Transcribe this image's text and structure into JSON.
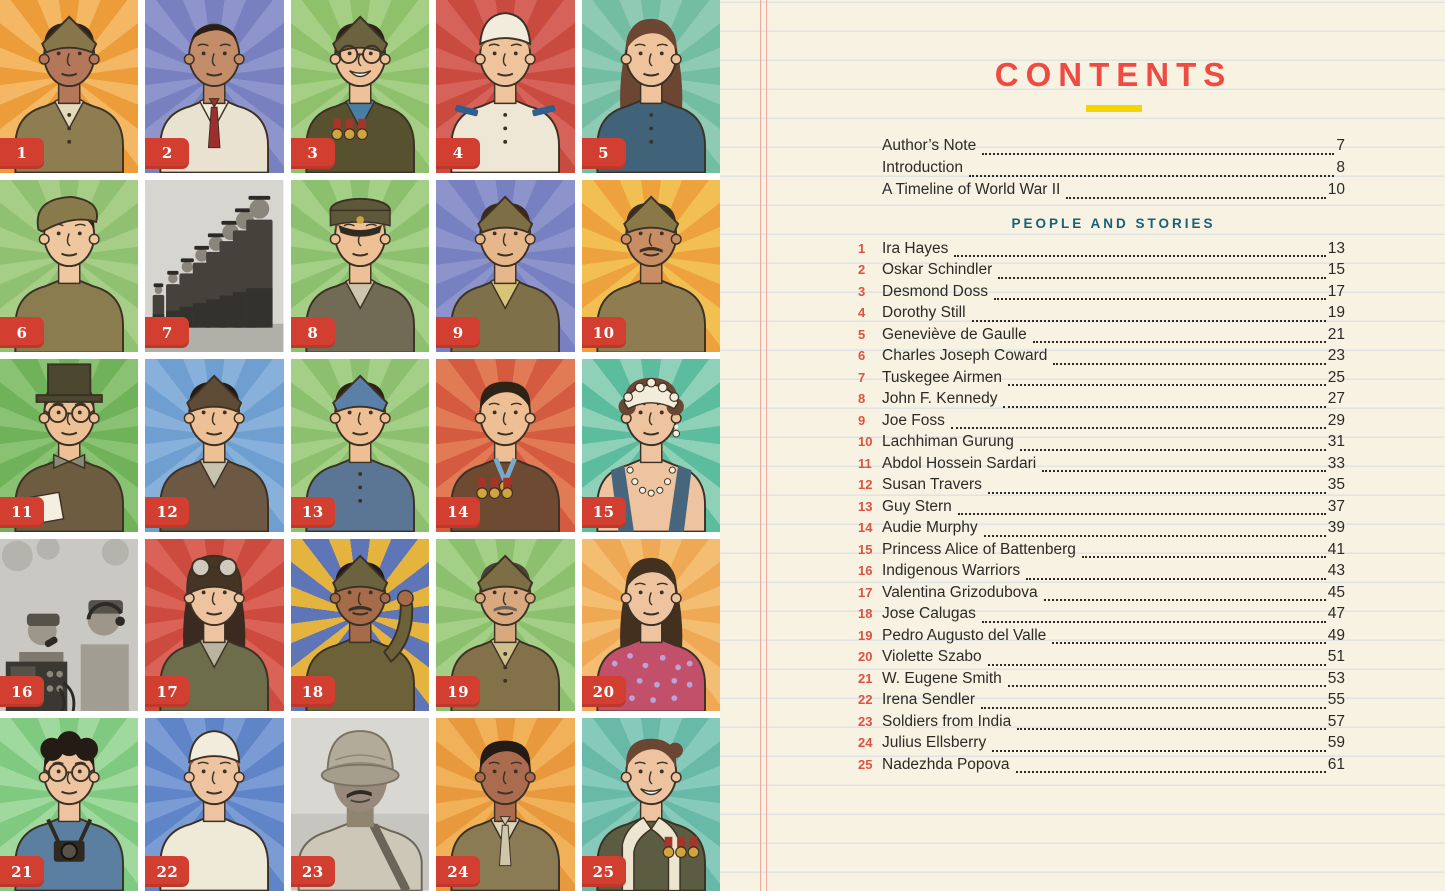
{
  "page": {
    "bg_color": "#f8f2e2",
    "rule_color": "#dfe3e1",
    "margin_line_color": "#eeab9e"
  },
  "contents": {
    "title": "CONTENTS",
    "title_color": "#ef4b41",
    "underline_color": "#f2d600",
    "section_heading": "PEOPLE AND STORIES",
    "section_color": "#15607a",
    "number_color": "#dd5240",
    "text_color": "#2b2a26",
    "front_matter": [
      {
        "label": "Author’s Note",
        "page": "7"
      },
      {
        "label": "Introduction",
        "page": "8"
      },
      {
        "label": "A Timeline of World War II",
        "page": "10"
      }
    ],
    "entries": [
      {
        "n": "1",
        "name": "Ira Hayes",
        "page": "13"
      },
      {
        "n": "2",
        "name": "Oskar Schindler",
        "page": "15"
      },
      {
        "n": "3",
        "name": "Desmond Doss",
        "page": "17"
      },
      {
        "n": "4",
        "name": "Dorothy Still",
        "page": "19"
      },
      {
        "n": "5",
        "name": "Geneviève de Gaulle",
        "page": "21"
      },
      {
        "n": "6",
        "name": "Charles Joseph Coward",
        "page": "23"
      },
      {
        "n": "7",
        "name": "Tuskegee Airmen",
        "page": "25"
      },
      {
        "n": "8",
        "name": "John F. Kennedy",
        "page": "27"
      },
      {
        "n": "9",
        "name": "Joe Foss",
        "page": "29"
      },
      {
        "n": "10",
        "name": "Lachhiman Gurung",
        "page": "31"
      },
      {
        "n": "11",
        "name": "Abdol Hossein Sardari",
        "page": "33"
      },
      {
        "n": "12",
        "name": "Susan Travers",
        "page": "35"
      },
      {
        "n": "13",
        "name": "Guy Stern",
        "page": "37"
      },
      {
        "n": "14",
        "name": "Audie Murphy",
        "page": "39"
      },
      {
        "n": "15",
        "name": "Princess Alice of Battenberg",
        "page": "41"
      },
      {
        "n": "16",
        "name": "Indigenous Warriors",
        "page": "43"
      },
      {
        "n": "17",
        "name": "Valentina Grizodubova",
        "page": "45"
      },
      {
        "n": "18",
        "name": "Jose Calugas",
        "page": "47"
      },
      {
        "n": "19",
        "name": "Pedro Augusto del Valle",
        "page": "49"
      },
      {
        "n": "20",
        "name": "Violette Szabo",
        "page": "51"
      },
      {
        "n": "21",
        "name": "W. Eugene Smith",
        "page": "53"
      },
      {
        "n": "22",
        "name": "Irena Sendler",
        "page": "55"
      },
      {
        "n": "23",
        "name": "Soldiers from India",
        "page": "57"
      },
      {
        "n": "24",
        "name": "Julius Ellsberry",
        "page": "59"
      },
      {
        "n": "25",
        "name": "Nadezhda Popova",
        "page": "61"
      }
    ]
  },
  "grid": {
    "badge_color": "#d23f30",
    "badge_text_color": "#ffffff",
    "cells": [
      {
        "n": "1",
        "kind": "art",
        "bg": [
          "#ed9c3a",
          "#f4b763"
        ],
        "skin": "#b5775a",
        "hair": "#2f2318",
        "hairStyle": "short",
        "hat": "garrison",
        "hatColor": "#86764a",
        "clothes": "#8d7d50",
        "shirt": "#e3d9bb",
        "extras": [
          "buttons"
        ]
      },
      {
        "n": "2",
        "kind": "art",
        "bg": [
          "#7880bf",
          "#8e95cc"
        ],
        "skin": "#c38d69",
        "hair": "#2a1f16",
        "hairStyle": "balding",
        "hat": "none",
        "clothes": "#eae2d0",
        "shirt": "#f1ead9",
        "extras": [
          "tie:#9c2e2e"
        ]
      },
      {
        "n": "3",
        "kind": "art",
        "bg": [
          "#8fc06c",
          "#a6cf86"
        ],
        "skin": "#eec199",
        "hair": "#2f2318",
        "hairStyle": "short",
        "hat": "garrison",
        "hatColor": "#6b6340",
        "clothes": "#575130",
        "shirt": "#4a7fa5",
        "glasses": true,
        "smile": true,
        "extras": [
          "medals:left"
        ]
      },
      {
        "n": "4",
        "kind": "art",
        "bg": [
          "#c94b40",
          "#d6635a"
        ],
        "skin": "#efc49c",
        "hair": "#8a5a3a",
        "hairStyle": "short",
        "hat": "nurse",
        "clothes": "#eee7d6",
        "extras": [
          "shoulderboards",
          "buttons"
        ]
      },
      {
        "n": "5",
        "kind": "art",
        "bg": [
          "#73bda3",
          "#8ecab4"
        ],
        "skin": "#efc49c",
        "hair": "#6b4632",
        "hairStyle": "long",
        "hat": "none",
        "clothes": "#41637a",
        "extras": [
          "buttons"
        ]
      },
      {
        "n": "6",
        "kind": "art",
        "bg": [
          "#90c071",
          "#a6ce87"
        ],
        "skin": "#eec79e",
        "hair": "#2f2318",
        "hairStyle": "short",
        "hat": "beret",
        "hatColor": "#887a4b",
        "clothes": "#8a7c4f",
        "extras": []
      },
      {
        "n": "7",
        "kind": "photo-line",
        "bg": [
          "#d6d5d0",
          "#b0afa8"
        ]
      },
      {
        "n": "8",
        "kind": "art",
        "bg": [
          "#8dc06e",
          "#a3cf86"
        ],
        "skin": "#eec096",
        "hair": "#6b4a33",
        "hairStyle": "short",
        "hat": "peaked",
        "hatColor": "#5d583a",
        "clothes": "#716b55",
        "shirt": "#cfc5ae",
        "extras": []
      },
      {
        "n": "9",
        "kind": "art",
        "bg": [
          "#7780c0",
          "#8c94cb"
        ],
        "skin": "#e7b78c",
        "hair": "#3a2a1a",
        "hairStyle": "short",
        "hat": "garrison",
        "hatColor": "#7d6e45",
        "clothes": "#7e7048",
        "shirt": "#d9c377",
        "extras": []
      },
      {
        "n": "10",
        "kind": "art",
        "bg": [
          "#eda23e",
          "#f2c052"
        ],
        "skin": "#c98d63",
        "hair": "#3a2e22",
        "hairStyle": "short",
        "hat": "garrison",
        "hatColor": "#8a7948",
        "clothes": "#8d7d50",
        "mustache": true,
        "extras": []
      },
      {
        "n": "11",
        "kind": "art",
        "bg": [
          "#70b259",
          "#8ac273"
        ],
        "skin": "#eec096",
        "hair": "#3a2e22",
        "hairStyle": "short",
        "hat": "tophat",
        "hatColor": "#4c472f",
        "clothes": "#6e5c40",
        "glasses": true,
        "extras": [
          "bowtie:#8a8a7a",
          "papers"
        ]
      },
      {
        "n": "12",
        "kind": "art",
        "bg": [
          "#6f9fd0",
          "#87b1da"
        ],
        "skin": "#eec096",
        "hair": "#241c14",
        "hairStyle": "short",
        "hat": "garrison",
        "hatColor": "#5f4a36",
        "clothes": "#6d5843",
        "shirt": "#c9c2ae",
        "extras": []
      },
      {
        "n": "13",
        "kind": "art",
        "bg": [
          "#8dc06e",
          "#a3cf86"
        ],
        "skin": "#eebf94",
        "hair": "#2f2318",
        "hairStyle": "short",
        "hat": "garrison",
        "hatColor": "#5b80a8",
        "clothes": "#5a7694",
        "extras": [
          "buttons"
        ]
      },
      {
        "n": "14",
        "kind": "art",
        "bg": [
          "#d45b3f",
          "#e07b56"
        ],
        "skin": "#eebf94",
        "hair": "#2f2318",
        "hairStyle": "short",
        "hat": "none",
        "clothes": "#6e4a33",
        "extras": [
          "neckribbon:#7aa8c8",
          "medals:left"
        ]
      },
      {
        "n": "15",
        "kind": "art",
        "bg": [
          "#5cbc9e",
          "#8ed1b8"
        ],
        "skin": "#eec3a0",
        "hair": "#6b4632",
        "hairStyle": "updo",
        "hat": "tiara",
        "torsoSkin": true,
        "straps": "#47667e",
        "clothes": "#47667e",
        "extras": [
          "necklace",
          "earring"
        ]
      },
      {
        "n": "16",
        "kind": "photo-radio",
        "bg": [
          "#c9c8c2",
          "#3a3832"
        ]
      },
      {
        "n": "17",
        "kind": "art",
        "bg": [
          "#cc4a3e",
          "#da6257"
        ],
        "skin": "#eec3a0",
        "hair": "#3a2a20",
        "hairStyle": "long",
        "hat": "aviator",
        "hatColor": "#463425",
        "clothes": "#6d6d4c",
        "shirt": "#b9b4a0",
        "extras": []
      },
      {
        "n": "18",
        "kind": "art",
        "bg": [
          "#5e76b8",
          "#e5b43e"
        ],
        "skin": "#a66b49",
        "hair": "#241c14",
        "hairStyle": "short",
        "hat": "garrison",
        "hatColor": "#6b6340",
        "clothes": "#6d6139",
        "mustache": true,
        "extras": [
          "salute"
        ]
      },
      {
        "n": "19",
        "kind": "art",
        "bg": [
          "#8dc06e",
          "#a3cf86"
        ],
        "skin": "#d8a97f",
        "hair": "#4a4238",
        "hairStyle": "short",
        "hat": "garrison",
        "hatColor": "#7d6e45",
        "clothes": "#837149",
        "shirt": "#cfc08c",
        "mustache": true,
        "mustacheColor": "#6b6258",
        "extras": [
          "buttons"
        ]
      },
      {
        "n": "20",
        "kind": "art",
        "bg": [
          "#efa954",
          "#f4be72"
        ],
        "skin": "#eec3a0",
        "hair": "#43301f",
        "hairStyle": "long",
        "hat": "none",
        "clothes": "#c2506b",
        "extras": [
          "floral"
        ]
      },
      {
        "n": "21",
        "kind": "art",
        "bg": [
          "#80c981",
          "#a0d99d"
        ],
        "skin": "#eec3a0",
        "hair": "#241c14",
        "hairStyle": "curly",
        "hat": "none",
        "clothes": "#5b7fa0",
        "glasses": true,
        "extras": [
          "camera"
        ]
      },
      {
        "n": "22",
        "kind": "art",
        "bg": [
          "#5f85c8",
          "#7b9bd4"
        ],
        "skin": "#eec3a0",
        "hair": "#8a5a3a",
        "hairStyle": "short",
        "hat": "nurse",
        "clothes": "#efe9d8",
        "extras": [
          "redcross"
        ]
      },
      {
        "n": "23",
        "kind": "photo-helmet",
        "bg": [
          "#d8d7d1",
          "#c6c5bf"
        ]
      },
      {
        "n": "24",
        "kind": "art",
        "bg": [
          "#e8993e",
          "#f0b158"
        ],
        "skin": "#aa6b4f",
        "hair": "#241c14",
        "hairStyle": "short",
        "hat": "none",
        "clothes": "#8a7b55",
        "shirt": "#ddd3b8",
        "extras": [
          "tie:#cfc5aa"
        ]
      },
      {
        "n": "25",
        "kind": "art",
        "bg": [
          "#69b9a9",
          "#86cabb"
        ],
        "skin": "#eec3a0",
        "hair": "#6b4632",
        "hairStyle": "bun",
        "hat": "none",
        "clothes": "#5c5c42",
        "smile": true,
        "extras": [
          "furcollar",
          "medals:right"
        ]
      }
    ]
  }
}
